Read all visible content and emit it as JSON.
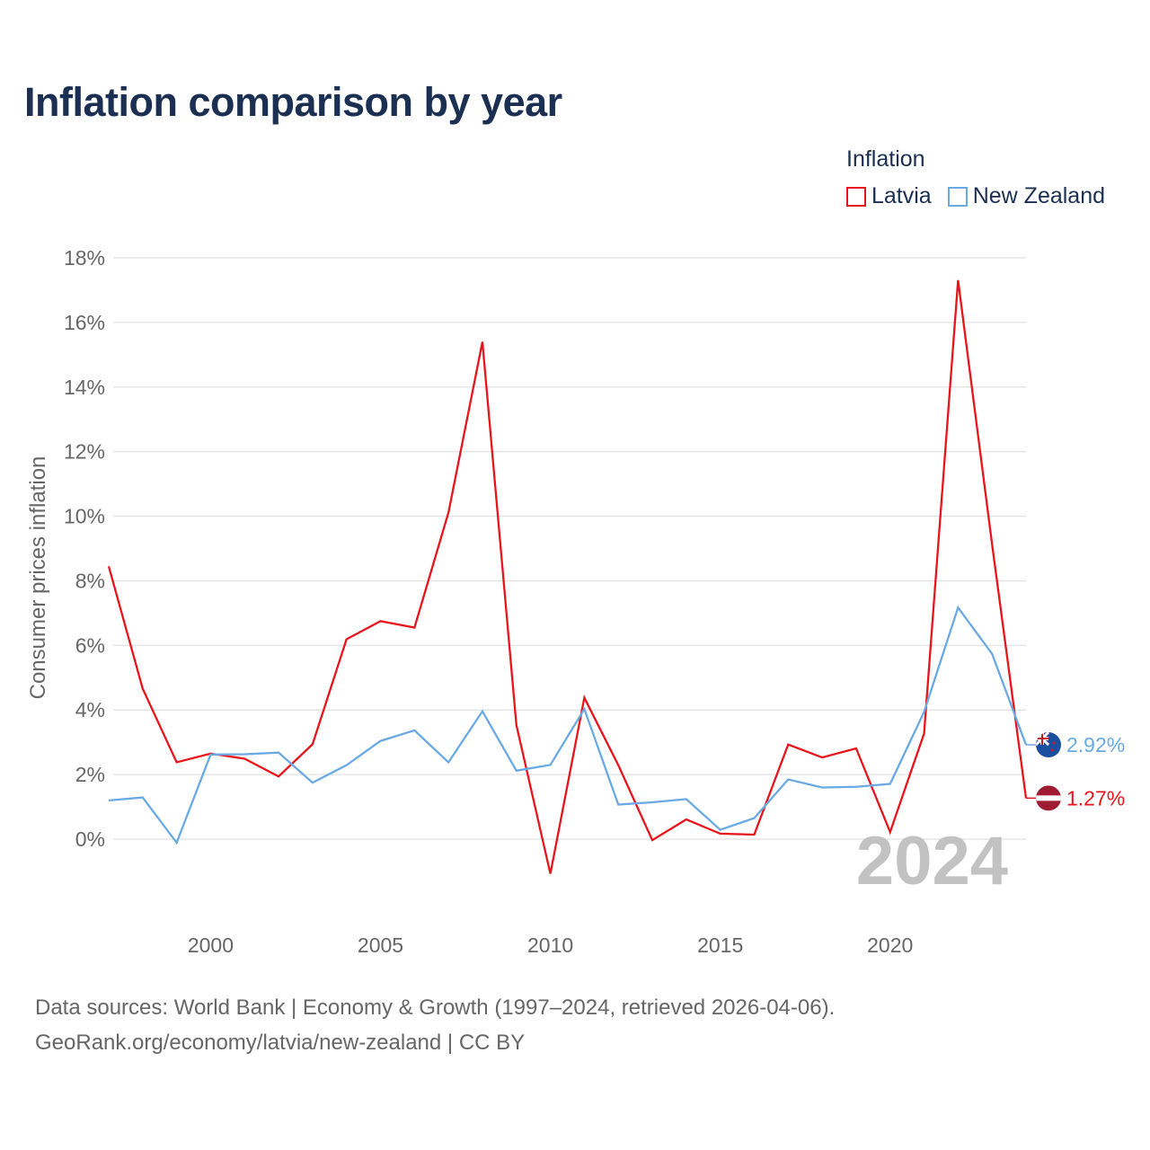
{
  "title": "Inflation comparison by year",
  "legend": {
    "title": "Inflation",
    "items": [
      {
        "label": "Latvia",
        "color": "#e8141b"
      },
      {
        "label": "New Zealand",
        "color": "#6aaae4"
      }
    ]
  },
  "footer": {
    "line1": "Data sources: World Bank | Economy & Growth (1997–2024, retrieved 2026-04-06).",
    "line2": "GeoRank.org/economy/latvia/new-zealand | CC BY"
  },
  "chart_data": {
    "type": "line",
    "title": "Inflation comparison by year",
    "ylabel": "Consumer prices inflation",
    "xlabel": "",
    "watermark_year": "2024",
    "x": [
      1997,
      1998,
      1999,
      2000,
      2001,
      2002,
      2003,
      2004,
      2005,
      2006,
      2007,
      2008,
      2009,
      2010,
      2011,
      2012,
      2013,
      2014,
      2015,
      2016,
      2017,
      2018,
      2019,
      2020,
      2021,
      2022,
      2023,
      2024
    ],
    "xlim": [
      1997,
      2024
    ],
    "ylim": [
      -4,
      18
    ],
    "x_ticks": [
      2000,
      2005,
      2010,
      2015,
      2020
    ],
    "x_tick_labels": [
      "2000",
      "2005",
      "2010",
      "2015",
      "2020"
    ],
    "y_ticks": [
      0,
      2,
      4,
      6,
      8,
      10,
      12,
      14,
      16,
      18
    ],
    "y_tick_labels": [
      "0%",
      "2%",
      "4%",
      "6%",
      "8%",
      "10%",
      "12%",
      "14%",
      "16%",
      "18%"
    ],
    "grid": true,
    "series": [
      {
        "name": "Latvia",
        "color": "#e8141b",
        "end_label": "1.27%",
        "flag": "latvia-flag-icon",
        "values": [
          8.45,
          4.66,
          2.38,
          2.65,
          2.49,
          1.94,
          2.94,
          6.19,
          6.75,
          6.55,
          10.11,
          15.4,
          3.53,
          -1.07,
          4.38,
          2.29,
          -0.03,
          0.61,
          0.17,
          0.14,
          2.93,
          2.53,
          2.81,
          0.22,
          3.27,
          17.31,
          9.14,
          1.27
        ]
      },
      {
        "name": "New Zealand",
        "color": "#6aaae4",
        "end_label": "2.92%",
        "flag": "new-zealand-flag-icon",
        "values": [
          1.2,
          1.29,
          -0.11,
          2.62,
          2.63,
          2.68,
          1.75,
          2.29,
          3.04,
          3.37,
          2.38,
          3.96,
          2.12,
          2.3,
          4.03,
          1.07,
          1.14,
          1.24,
          0.29,
          0.65,
          1.85,
          1.6,
          1.62,
          1.71,
          3.94,
          7.17,
          5.74,
          2.92
        ]
      }
    ]
  }
}
